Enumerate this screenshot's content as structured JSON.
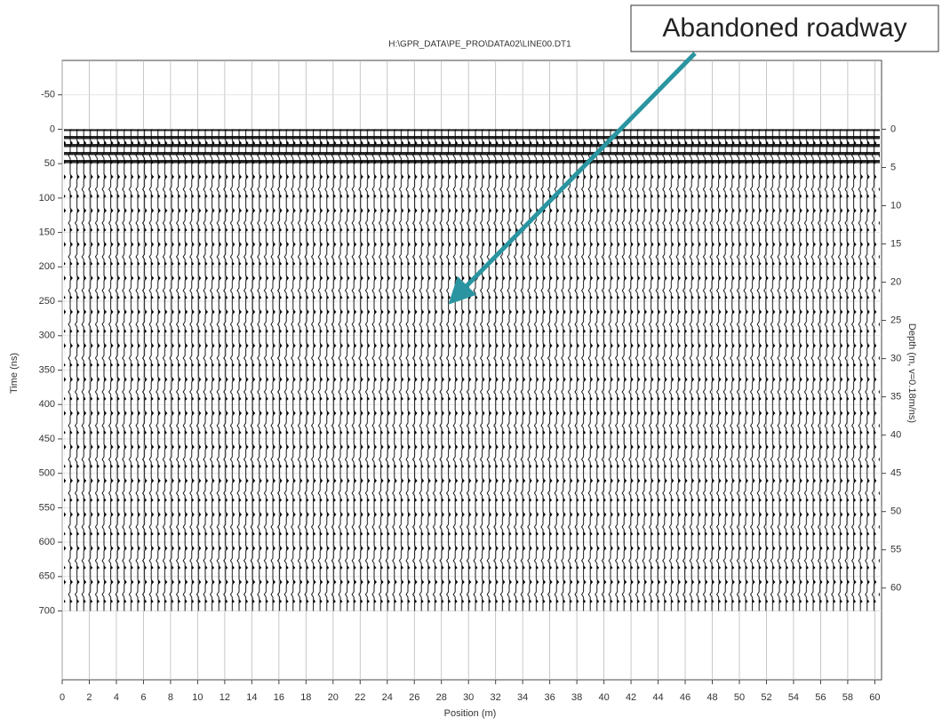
{
  "chart_data": {
    "type": "radargram",
    "title": "H:\\GPR_DATA\\PE_PRO\\DATA02\\LINE00.DT1",
    "annotation": "Abandoned roadway",
    "xlabel": "Position (m)",
    "ylabel": "Time (ns)",
    "y2label": "Depth (m, v=0.18m/ns)",
    "xlim": [
      0,
      60.5
    ],
    "xticks": [
      0,
      2,
      4,
      6,
      8,
      10,
      12,
      14,
      16,
      18,
      20,
      22,
      24,
      26,
      28,
      30,
      32,
      34,
      36,
      38,
      40,
      42,
      44,
      46,
      48,
      50,
      52,
      54,
      56,
      58,
      60
    ],
    "ylim": [
      800,
      -100
    ],
    "yticks": [
      -50,
      0,
      50,
      100,
      150,
      200,
      250,
      300,
      350,
      400,
      450,
      500,
      550,
      600,
      650,
      700
    ],
    "y2lim": [
      72,
      -9
    ],
    "y2ticks": [
      0,
      5,
      10,
      15,
      20,
      25,
      30,
      35,
      40,
      45,
      50,
      55,
      60
    ],
    "grid": true
  }
}
